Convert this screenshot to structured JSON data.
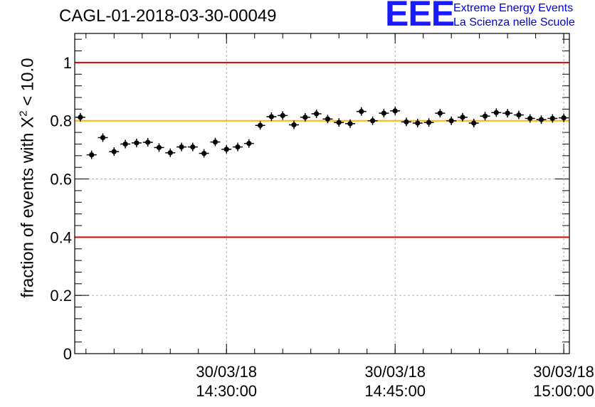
{
  "chart_data": {
    "type": "scatter",
    "title": "CAGL-01-2018-03-30-00049",
    "ylabel": {
      "prefix": "fraction of events with X",
      "sup": "2",
      "suffix": " < 10.0"
    },
    "xlabel": "",
    "ylim": [
      0,
      1.1
    ],
    "yticks": [
      "0",
      "0.2",
      "0.4",
      "0.6",
      "0.8",
      "1"
    ],
    "xlim": [
      "2018-03-30 14:16:30",
      "2018-03-30 15:00:30"
    ],
    "xticks": [
      {
        "date": "30/03/18",
        "time": "14:30:00"
      },
      {
        "date": "30/03/18",
        "time": "14:45:00"
      },
      {
        "date": "30/03/18",
        "time": "15:00:00"
      }
    ],
    "grid": true,
    "reference_lines": [
      {
        "y": 1.0,
        "color": "#e00000"
      },
      {
        "y": 0.8,
        "color": "#ffb400"
      },
      {
        "y": 0.4,
        "color": "#e00000"
      }
    ],
    "marker_color": "#000000",
    "series": [
      {
        "x": [
          "14:17:00",
          "14:18:00",
          "14:19:00",
          "14:20:00",
          "14:21:00",
          "14:22:00",
          "14:23:00",
          "14:24:00",
          "14:25:00",
          "14:26:00",
          "14:27:00",
          "14:28:00",
          "14:29:00",
          "14:30:00",
          "14:31:00",
          "14:32:00",
          "14:33:00",
          "14:34:00",
          "14:35:00",
          "14:36:00",
          "14:37:00",
          "14:38:00",
          "14:39:00",
          "14:40:00",
          "14:41:00",
          "14:42:00",
          "14:43:00",
          "14:44:00",
          "14:45:00",
          "14:46:00",
          "14:47:00",
          "14:48:00",
          "14:49:00",
          "14:50:00",
          "14:51:00",
          "14:52:00",
          "14:53:00",
          "14:54:00",
          "14:55:00",
          "14:56:00",
          "14:57:00",
          "14:58:00",
          "14:59:00",
          "15:00:00"
        ],
        "y": [
          0.812,
          0.683,
          0.742,
          0.694,
          0.72,
          0.724,
          0.726,
          0.708,
          0.69,
          0.71,
          0.71,
          0.688,
          0.727,
          0.702,
          0.71,
          0.722,
          0.784,
          0.814,
          0.818,
          0.786,
          0.812,
          0.824,
          0.806,
          0.794,
          0.79,
          0.832,
          0.8,
          0.826,
          0.834,
          0.796,
          0.792,
          0.794,
          0.826,
          0.8,
          0.812,
          0.792,
          0.816,
          0.828,
          0.826,
          0.82,
          0.808,
          0.804,
          0.808,
          0.81
        ]
      }
    ]
  },
  "logo": {
    "letters": "EEE",
    "line1": "Extreme Energy Events",
    "line2": "La Scienza nelle Scuole",
    "color": "#1a1aff"
  }
}
